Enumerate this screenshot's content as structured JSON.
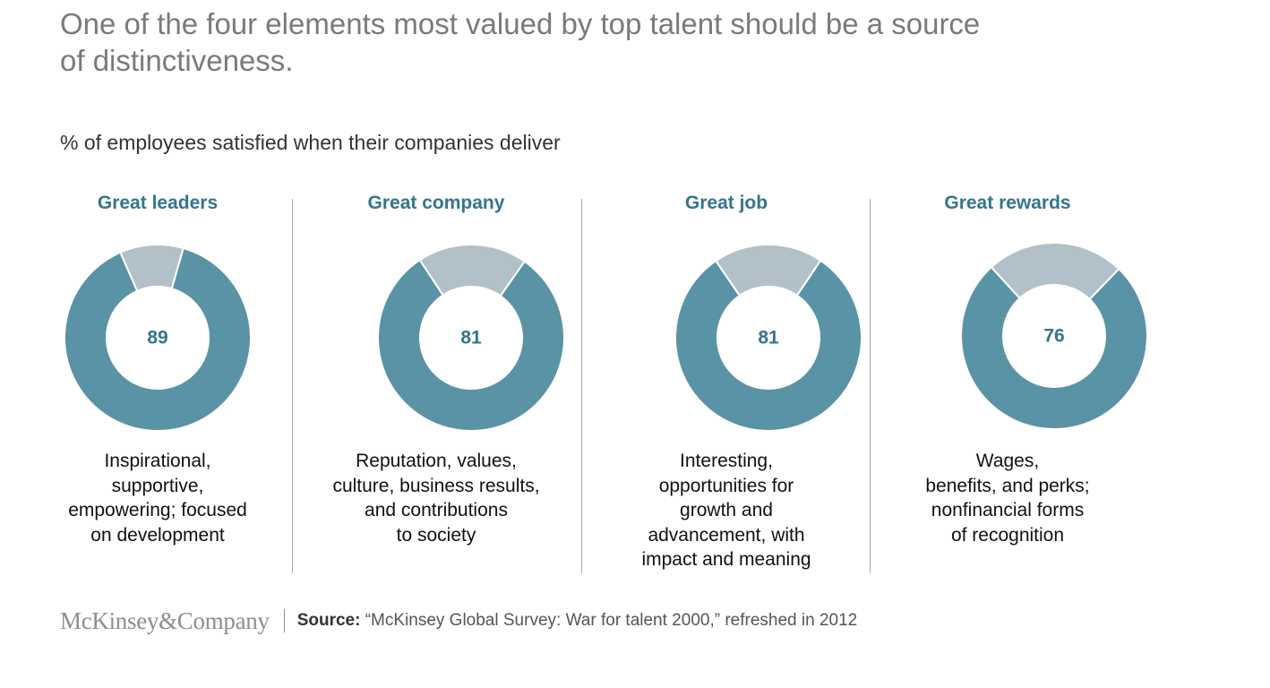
{
  "headline": "One of the four elements most valued by top talent should be a source of distinctiveness.",
  "chart_data": {
    "type": "pie",
    "title": "% of employees satisfied when their companies deliver",
    "colors": {
      "satisfied": "#5b93a6",
      "not_satisfied": "#b2c1c9"
    },
    "series": [
      {
        "name": "Great leaders",
        "value": 89,
        "description": "Inspirational,\nsupportive,\nempowering; focused\non development"
      },
      {
        "name": "Great company",
        "value": 81,
        "description": "Reputation, values,\nculture, business results,\nand contributions\nto society"
      },
      {
        "name": "Great job",
        "value": 81,
        "description": "Interesting,\nopportunities for\ngrowth and\nadvancement, with\nimpact and meaning"
      },
      {
        "name": "Great rewards",
        "value": 76,
        "description": "Wages,\nbenefits, and perks;\nnonfinancial forms\nof recognition"
      }
    ]
  },
  "footer": {
    "logo": "McKinsey&Company",
    "source_label": "Source:",
    "source_text": " “McKinsey Global Survey: War for talent 2000,” refreshed in 2012"
  }
}
